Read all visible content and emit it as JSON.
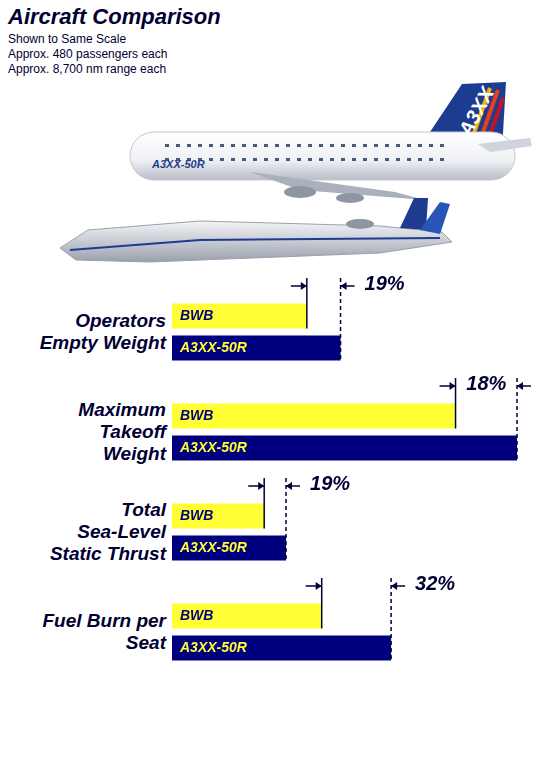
{
  "header": {
    "title": "Aircraft Comparison",
    "notes": [
      "Shown to Same Scale",
      "Approx. 480 passengers each",
      "Approx. 8,700 nm range each"
    ]
  },
  "illustration": {
    "labels": [
      "A3XX-50R",
      "A3XX"
    ]
  },
  "chart_data": [
    {
      "type": "bar",
      "orientation": "horizontal",
      "title": "Operators Empty Weight",
      "categories": [
        "BWB",
        "A3XX-50R"
      ],
      "values": [
        136,
        170
      ],
      "colors": [
        "#ffff33",
        "#00007f"
      ],
      "xlim": [
        0,
        350
      ],
      "tick_labels": false,
      "grid": false,
      "annotation": "19%"
    },
    {
      "type": "bar",
      "orientation": "horizontal",
      "title": "Maximum Takeoff Weight",
      "categories": [
        "BWB",
        "A3XX-50R"
      ],
      "values": [
        286,
        348
      ],
      "colors": [
        "#ffff33",
        "#00007f"
      ],
      "xlim": [
        0,
        350
      ],
      "tick_labels": false,
      "grid": false,
      "annotation": "18%"
    },
    {
      "type": "bar",
      "orientation": "horizontal",
      "title": "Total Sea-Level Static Thrust",
      "categories": [
        "BWB",
        "A3XX-50R"
      ],
      "values": [
        93,
        115
      ],
      "colors": [
        "#ffff33",
        "#00007f"
      ],
      "xlim": [
        0,
        350
      ],
      "tick_labels": false,
      "grid": false,
      "annotation": "19%"
    },
    {
      "type": "bar",
      "orientation": "horizontal",
      "title": "Fuel Burn per Seat",
      "categories": [
        "BWB",
        "A3XX-50R"
      ],
      "values": [
        151,
        221
      ],
      "colors": [
        "#ffff33",
        "#00007f"
      ],
      "xlim": [
        0,
        350
      ],
      "tick_labels": false,
      "grid": false,
      "annotation": "32%"
    }
  ]
}
